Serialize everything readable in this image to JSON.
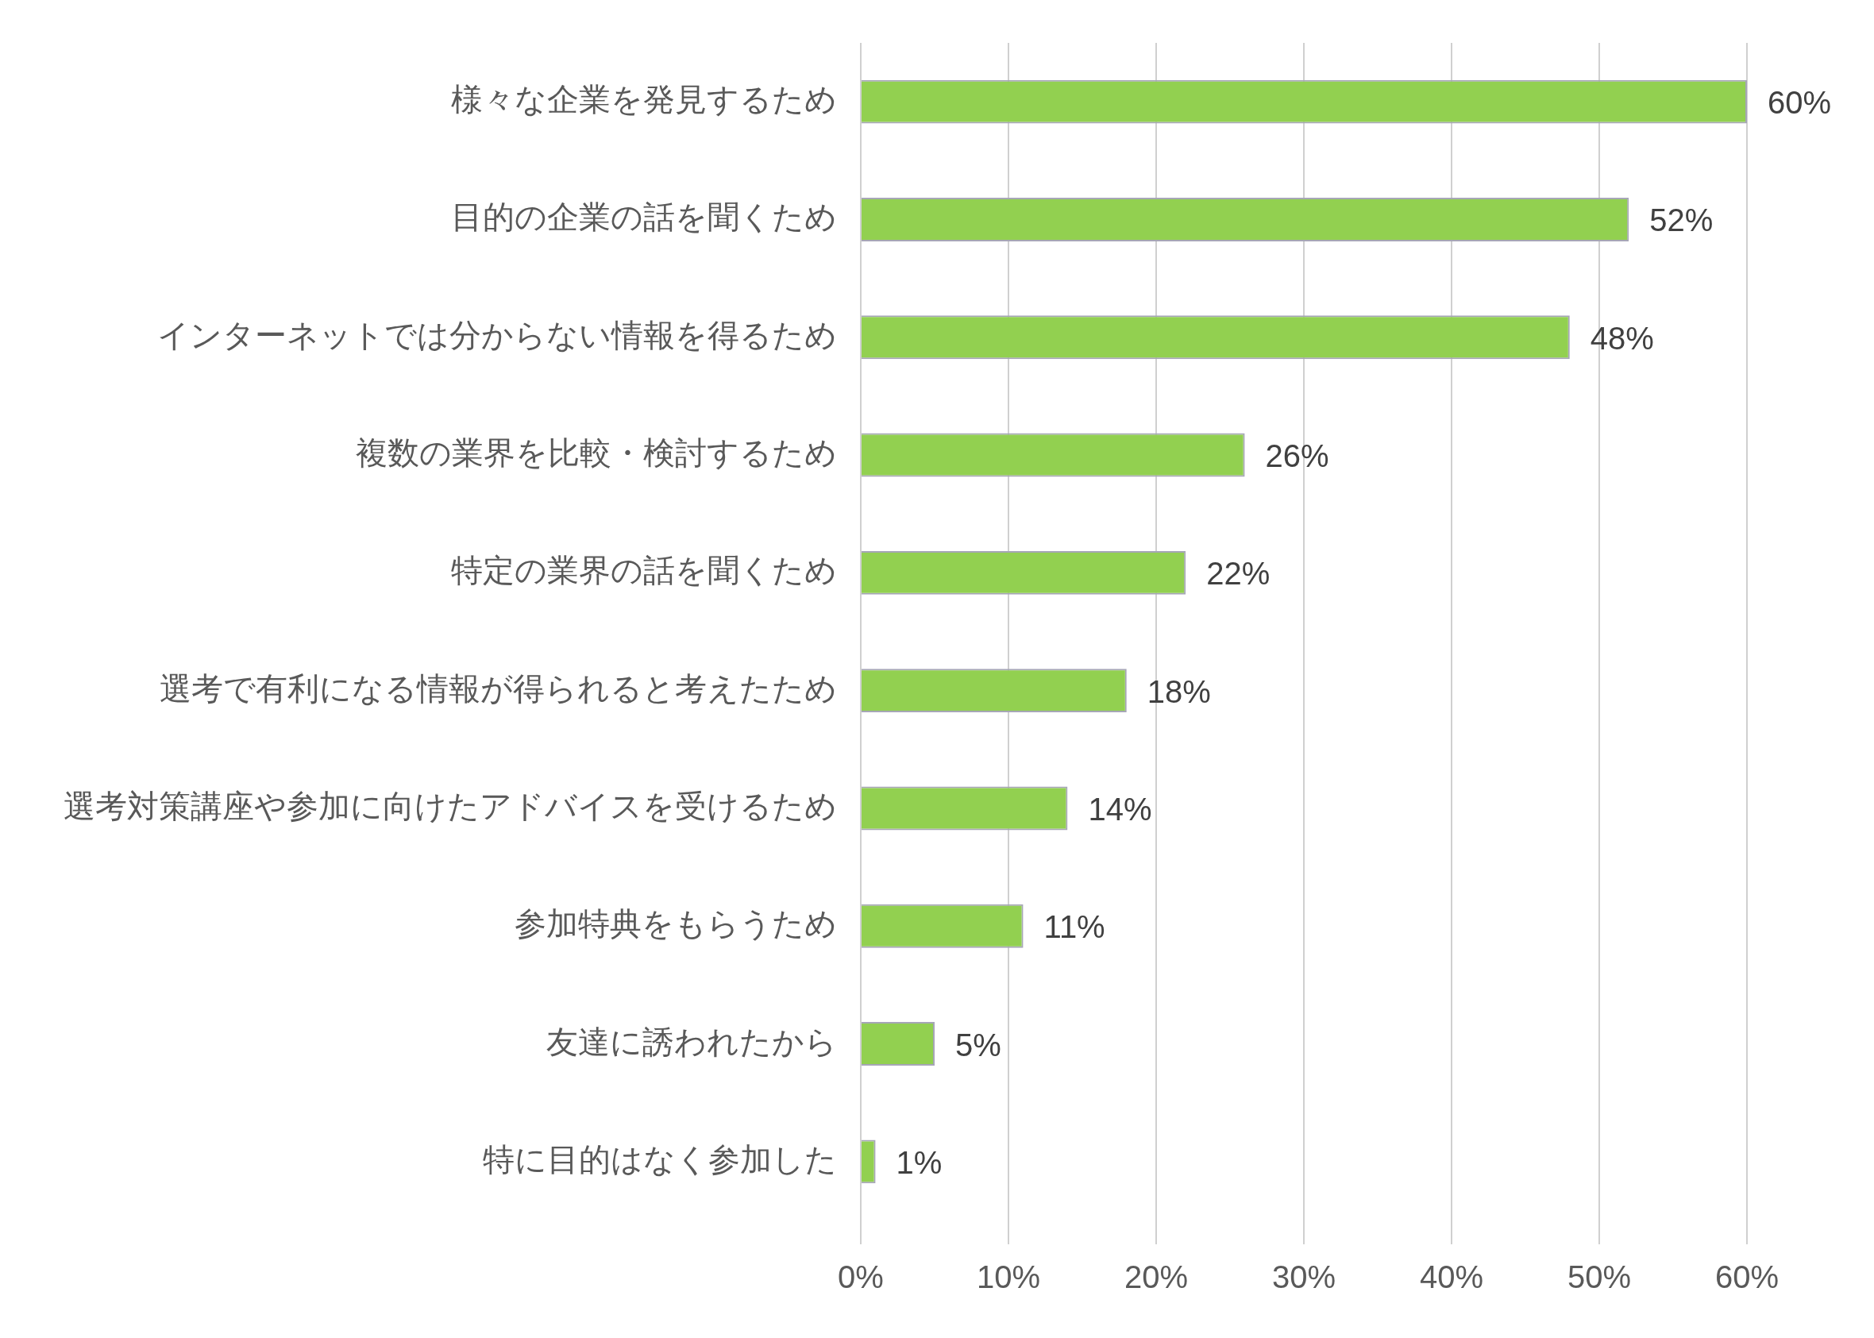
{
  "chart_data": {
    "type": "bar",
    "orientation": "horizontal",
    "categories": [
      "様々な企業を発見するため",
      "目的の企業の話を聞くため",
      "インターネットでは分からない情報を得るため",
      "複数の業界を比較・検討するため",
      "特定の業界の話を聞くため",
      "選考で有利になる情報が得られると考えたため",
      "選考対策講座や参加に向けたアドバイスを受けるため",
      "参加特典をもらうため",
      "友達に誘われたから",
      "特に目的はなく参加した"
    ],
    "values": [
      60,
      52,
      48,
      26,
      22,
      18,
      14,
      11,
      5,
      1
    ],
    "value_labels": [
      "60%",
      "52%",
      "48%",
      "26%",
      "22%",
      "18%",
      "14%",
      "11%",
      "5%",
      "1%"
    ],
    "color": "#92d050",
    "xlim": [
      0,
      60
    ],
    "xticks": [
      {
        "value": 0,
        "label": "0%"
      },
      {
        "value": 10,
        "label": "10%"
      },
      {
        "value": 20,
        "label": "20%"
      },
      {
        "value": 30,
        "label": "30%"
      },
      {
        "value": 40,
        "label": "40%"
      },
      {
        "value": 50,
        "label": "50%"
      },
      {
        "value": 60,
        "label": "60%"
      }
    ],
    "grid": "x",
    "legend": false
  }
}
